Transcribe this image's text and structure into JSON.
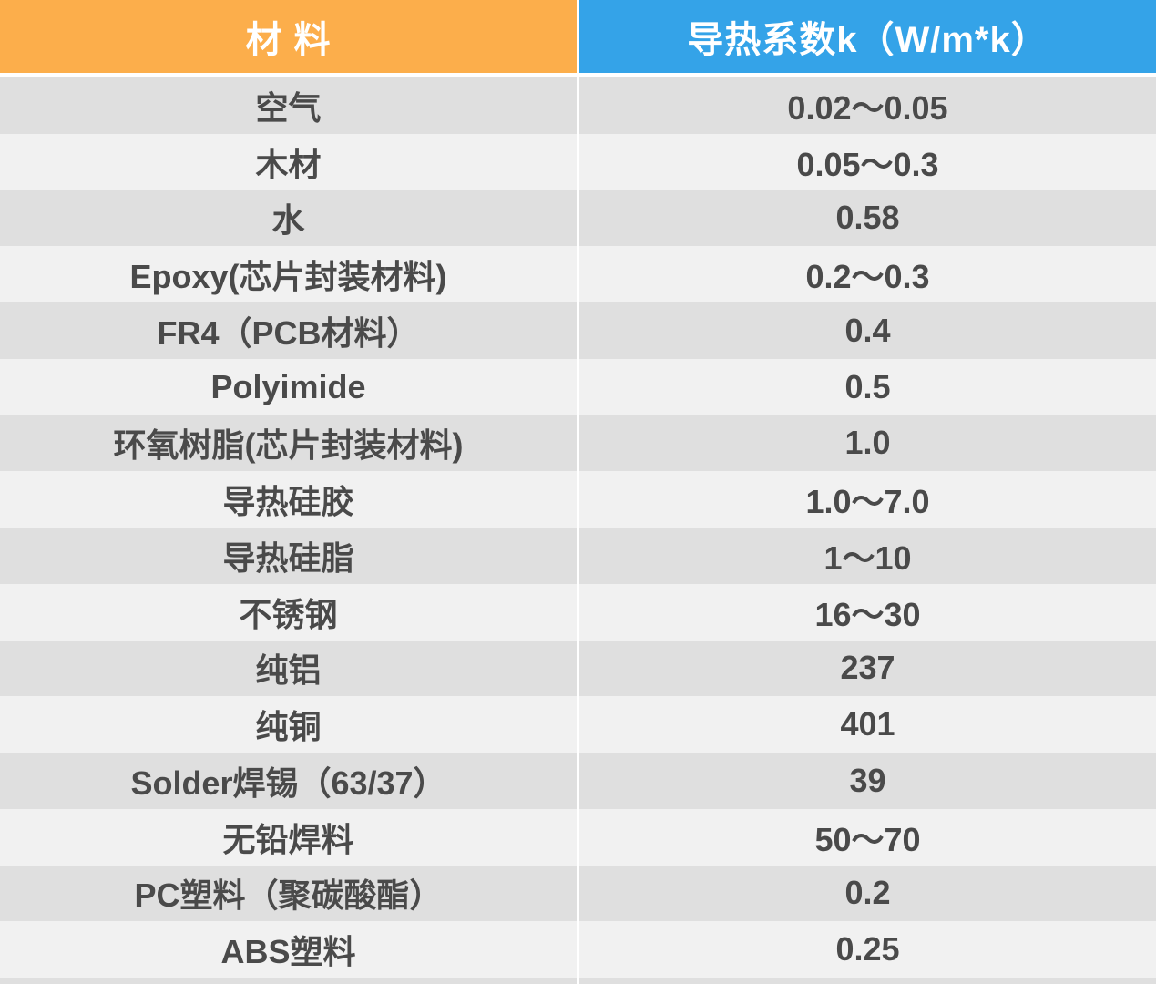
{
  "colors": {
    "header_orange": "#FCAE4B",
    "header_blue": "#34A3E8",
    "header_text": "#FFFFFF",
    "row_dark": "#DFDFDF",
    "row_light": "#F1F1F1",
    "divider": "#FFFFFF",
    "cell_text": "#4A4A4A",
    "bg": "#FFFFFF"
  },
  "table": {
    "headers": [
      "材 料",
      "导热系数k（W/m*k）"
    ],
    "rows": [
      {
        "material": "空气",
        "k": "0.02〜0.05"
      },
      {
        "material": "木材",
        "k": "0.05〜0.3"
      },
      {
        "material": "水",
        "k": "0.58"
      },
      {
        "material": "Epoxy(芯片封装材料)",
        "k": "0.2〜0.3"
      },
      {
        "material": "FR4（PCB材料）",
        "k": "0.4"
      },
      {
        "material": "Polyimide",
        "k": "0.5"
      },
      {
        "material": "环氧树脂(芯片封装材料)",
        "k": "1.0"
      },
      {
        "material": "导热硅胶",
        "k": "1.0〜7.0"
      },
      {
        "material": "导热硅脂",
        "k": "1〜10"
      },
      {
        "material": "不锈钢",
        "k": "16〜30"
      },
      {
        "material": "纯铝",
        "k": "237"
      },
      {
        "material": "纯铜",
        "k": "401"
      },
      {
        "material": "Solder焊锡（63/37）",
        "k": "39"
      },
      {
        "material": "无铅焊料",
        "k": "50〜70"
      },
      {
        "material": "PC塑料（聚碳酸酯）",
        "k": "0.2"
      },
      {
        "material": "ABS塑料",
        "k": "0.25"
      }
    ]
  },
  "chart_data": {
    "type": "table",
    "title": "",
    "columns": [
      "材料",
      "导热系数k(W/m*k)"
    ],
    "rows": [
      [
        "空气",
        "0.02〜0.05"
      ],
      [
        "木材",
        "0.05〜0.3"
      ],
      [
        "水",
        "0.58"
      ],
      [
        "Epoxy(芯片封装材料)",
        "0.2〜0.3"
      ],
      [
        "FR4（PCB材料）",
        "0.4"
      ],
      [
        "Polyimide",
        "0.5"
      ],
      [
        "环氧树脂(芯片封装材料)",
        "1.0"
      ],
      [
        "导热硅胶",
        "1.0〜7.0"
      ],
      [
        "导热硅脂",
        "1〜10"
      ],
      [
        "不锈钢",
        "16〜30"
      ],
      [
        "纯铝",
        "237"
      ],
      [
        "纯铜",
        "401"
      ],
      [
        "Solder焊锡（63/37）",
        "39"
      ],
      [
        "无铅焊料",
        "50〜70"
      ],
      [
        "PC塑料（聚碳酸酯）",
        "0.2"
      ],
      [
        "ABS塑料",
        "0.25"
      ]
    ]
  }
}
